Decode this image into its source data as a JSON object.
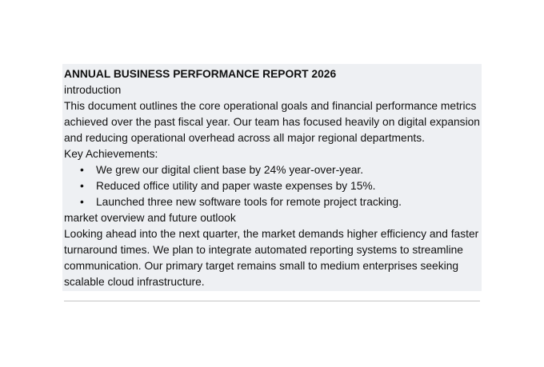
{
  "document": {
    "title": "ANNUAL BUSINESS PERFORMANCE REPORT 2026",
    "intro_heading": "introduction",
    "intro_lines": [
      "This document outlines the core operational goals and financial performance metrics",
      "achieved over the past fiscal year. Our team has focused heavily on digital expansion",
      "and reducing operational overhead across all major regional departments."
    ],
    "achievements_heading": "Key Achievements:",
    "bullet_glyph": "•",
    "achievements": [
      "We grew our digital client base by 24% year-over-year.",
      "Reduced office utility and paper waste expenses by 15%.",
      "Launched three new software tools for remote project tracking."
    ],
    "outlook_heading": "market overview and future outlook",
    "outlook_lines": [
      "Looking ahead into the next quarter, the market demands higher efficiency and faster",
      "turnaround times. We plan to integrate automated reporting systems to streamline",
      "communication. Our primary target remains small to medium enterprises seeking",
      "scalable cloud infrastructure."
    ]
  }
}
